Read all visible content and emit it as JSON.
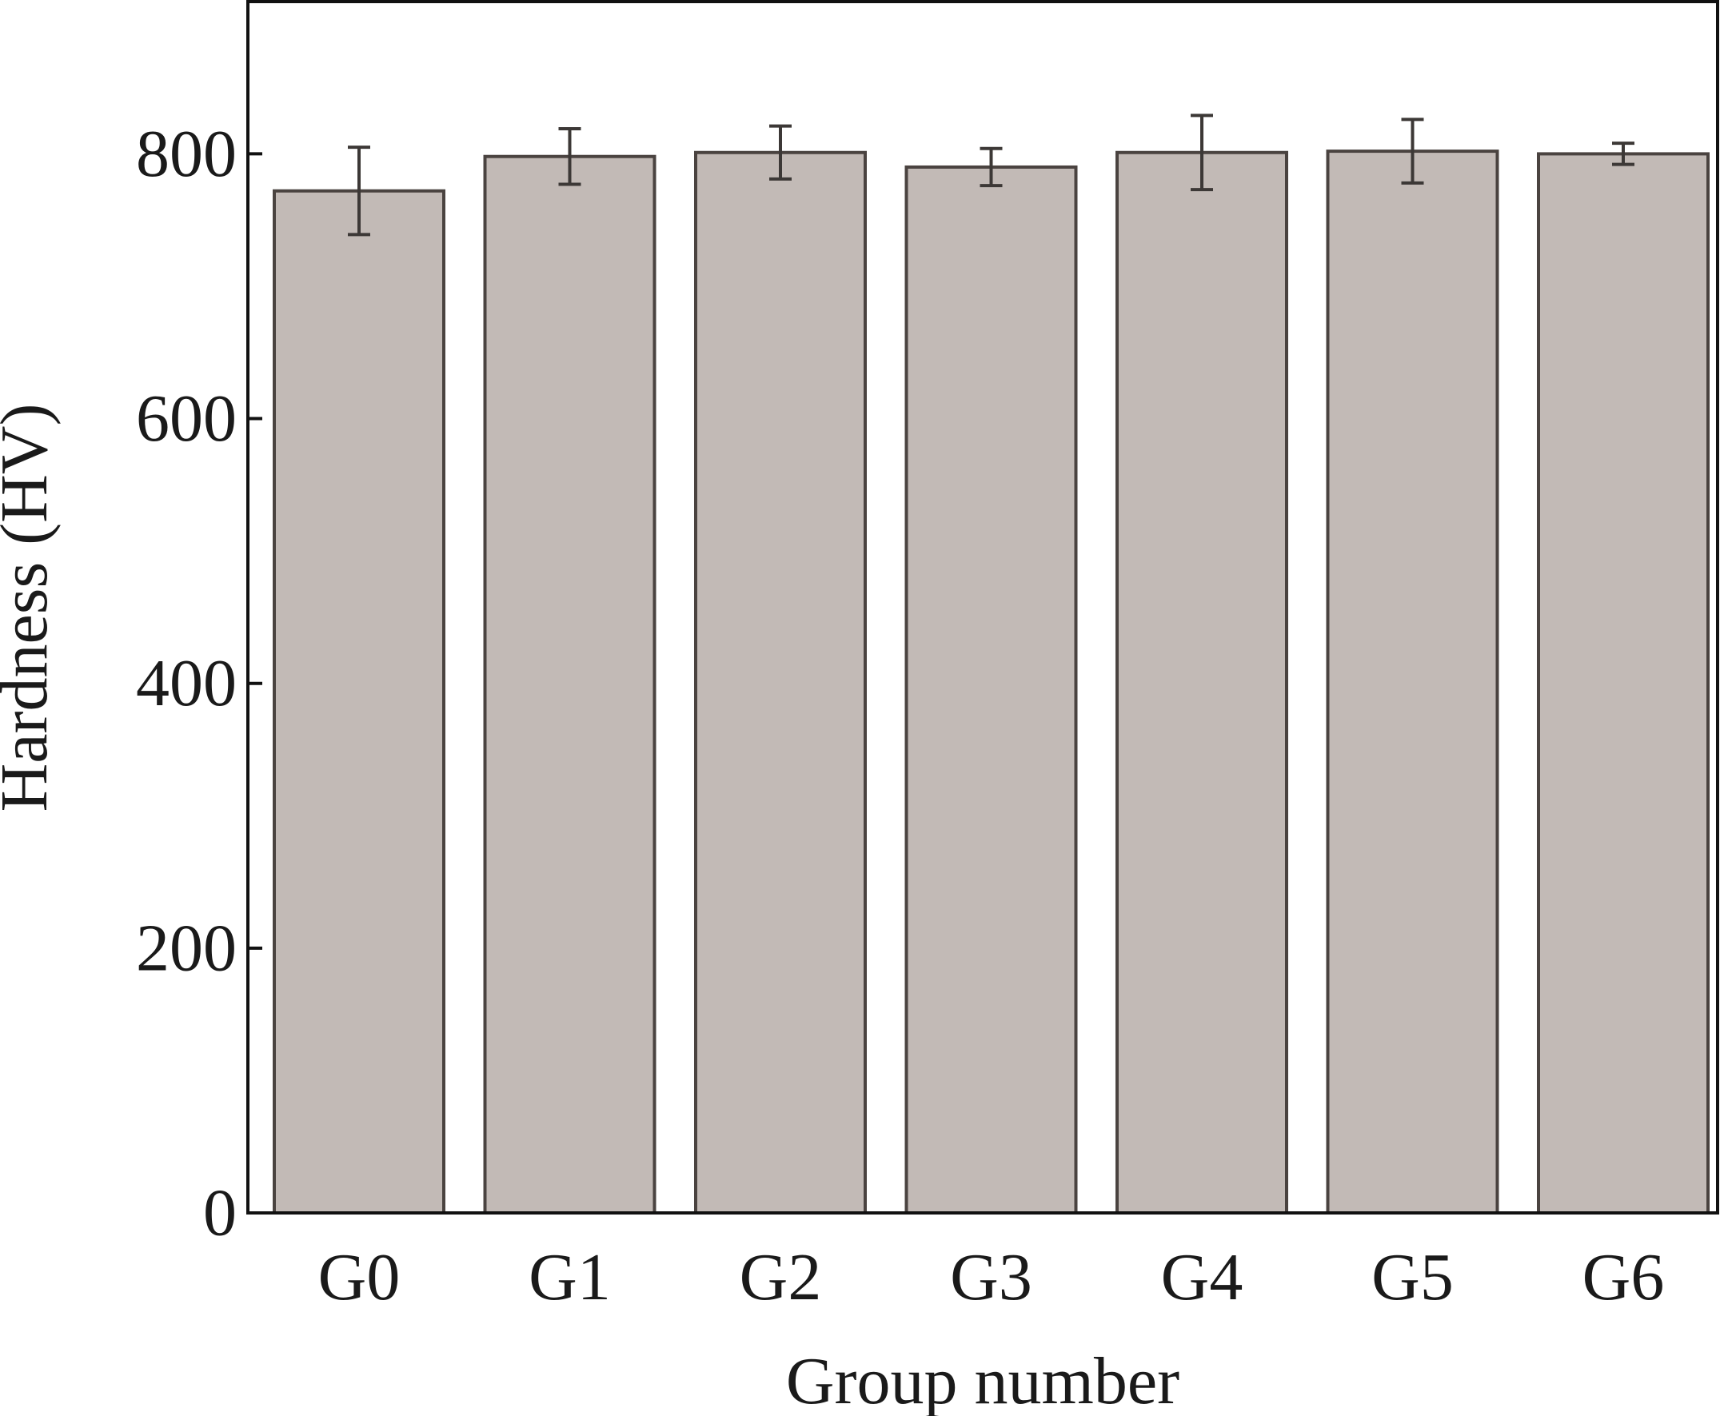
{
  "chart_data": {
    "type": "bar",
    "xlabel": "Group number",
    "ylabel": "Hardness (HV)",
    "categories": [
      "G0",
      "G1",
      "G2",
      "G3",
      "G4",
      "G5",
      "G6"
    ],
    "values": [
      772,
      798,
      801,
      790,
      801,
      802,
      800
    ],
    "errors": [
      33,
      21,
      20,
      14,
      28,
      24,
      8
    ],
    "ylim": [
      0,
      915
    ],
    "yticks": [
      "0",
      "200",
      "400",
      "600",
      "800"
    ],
    "grid": false,
    "legend": "none",
    "colors": {
      "bar_fill": "#c2bab6",
      "bar_edge": "#4a4340",
      "error_bar": "#3c3836",
      "axis": "#111111"
    }
  }
}
